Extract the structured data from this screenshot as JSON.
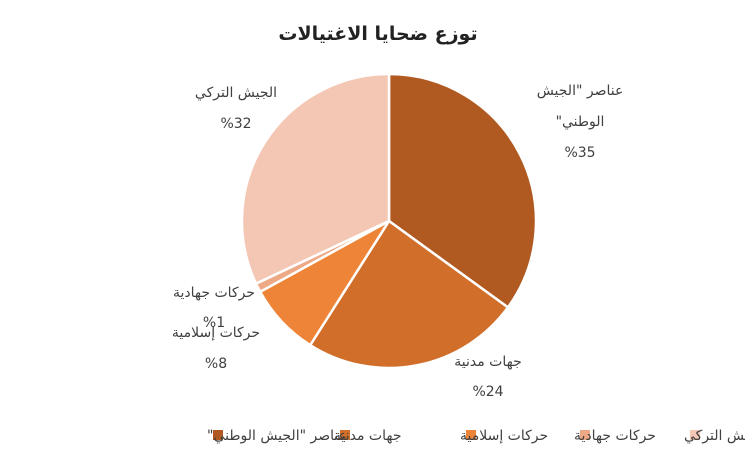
{
  "chart_data": {
    "type": "pie",
    "title": "توزع ضحايا الاغتيالات",
    "legend_position": "bottom",
    "slices": [
      {
        "label": "عناصر \"الجيش الوطني\"",
        "value": 35,
        "value_label": "%35",
        "color": "#B05A22"
      },
      {
        "label": "جهات مدنية",
        "value": 24,
        "value_label": "%24",
        "color": "#D06E2A"
      },
      {
        "label": "حركات إسلامية",
        "value": 8,
        "value_label": "%8",
        "color": "#EE8438"
      },
      {
        "label": "حركات جهادية",
        "value": 1,
        "value_label": "%1",
        "color": "#EDA985"
      },
      {
        "label": "الجيش التركي",
        "value": 32,
        "value_label": "%32",
        "color": "#F4C6B4"
      }
    ],
    "data_labels": [
      {
        "lines": [
          "عناصر \"الجيش",
          "الوطني\""
        ],
        "value": "%35"
      },
      {
        "lines": [
          "جهات مدنية"
        ],
        "value": "%24"
      },
      {
        "lines": [
          "حركات إسلامية"
        ],
        "value": "%8"
      },
      {
        "lines": [
          "حركات جهادية"
        ],
        "value": "%1"
      },
      {
        "lines": [
          "الجيش التركي"
        ],
        "value": "%32"
      }
    ],
    "legend_order": [
      "الجيش التركي",
      "حركات جهادية",
      "حركات إسلامية",
      "جهات مدنية",
      "عناصر \"الجيش الوطني\""
    ]
  }
}
